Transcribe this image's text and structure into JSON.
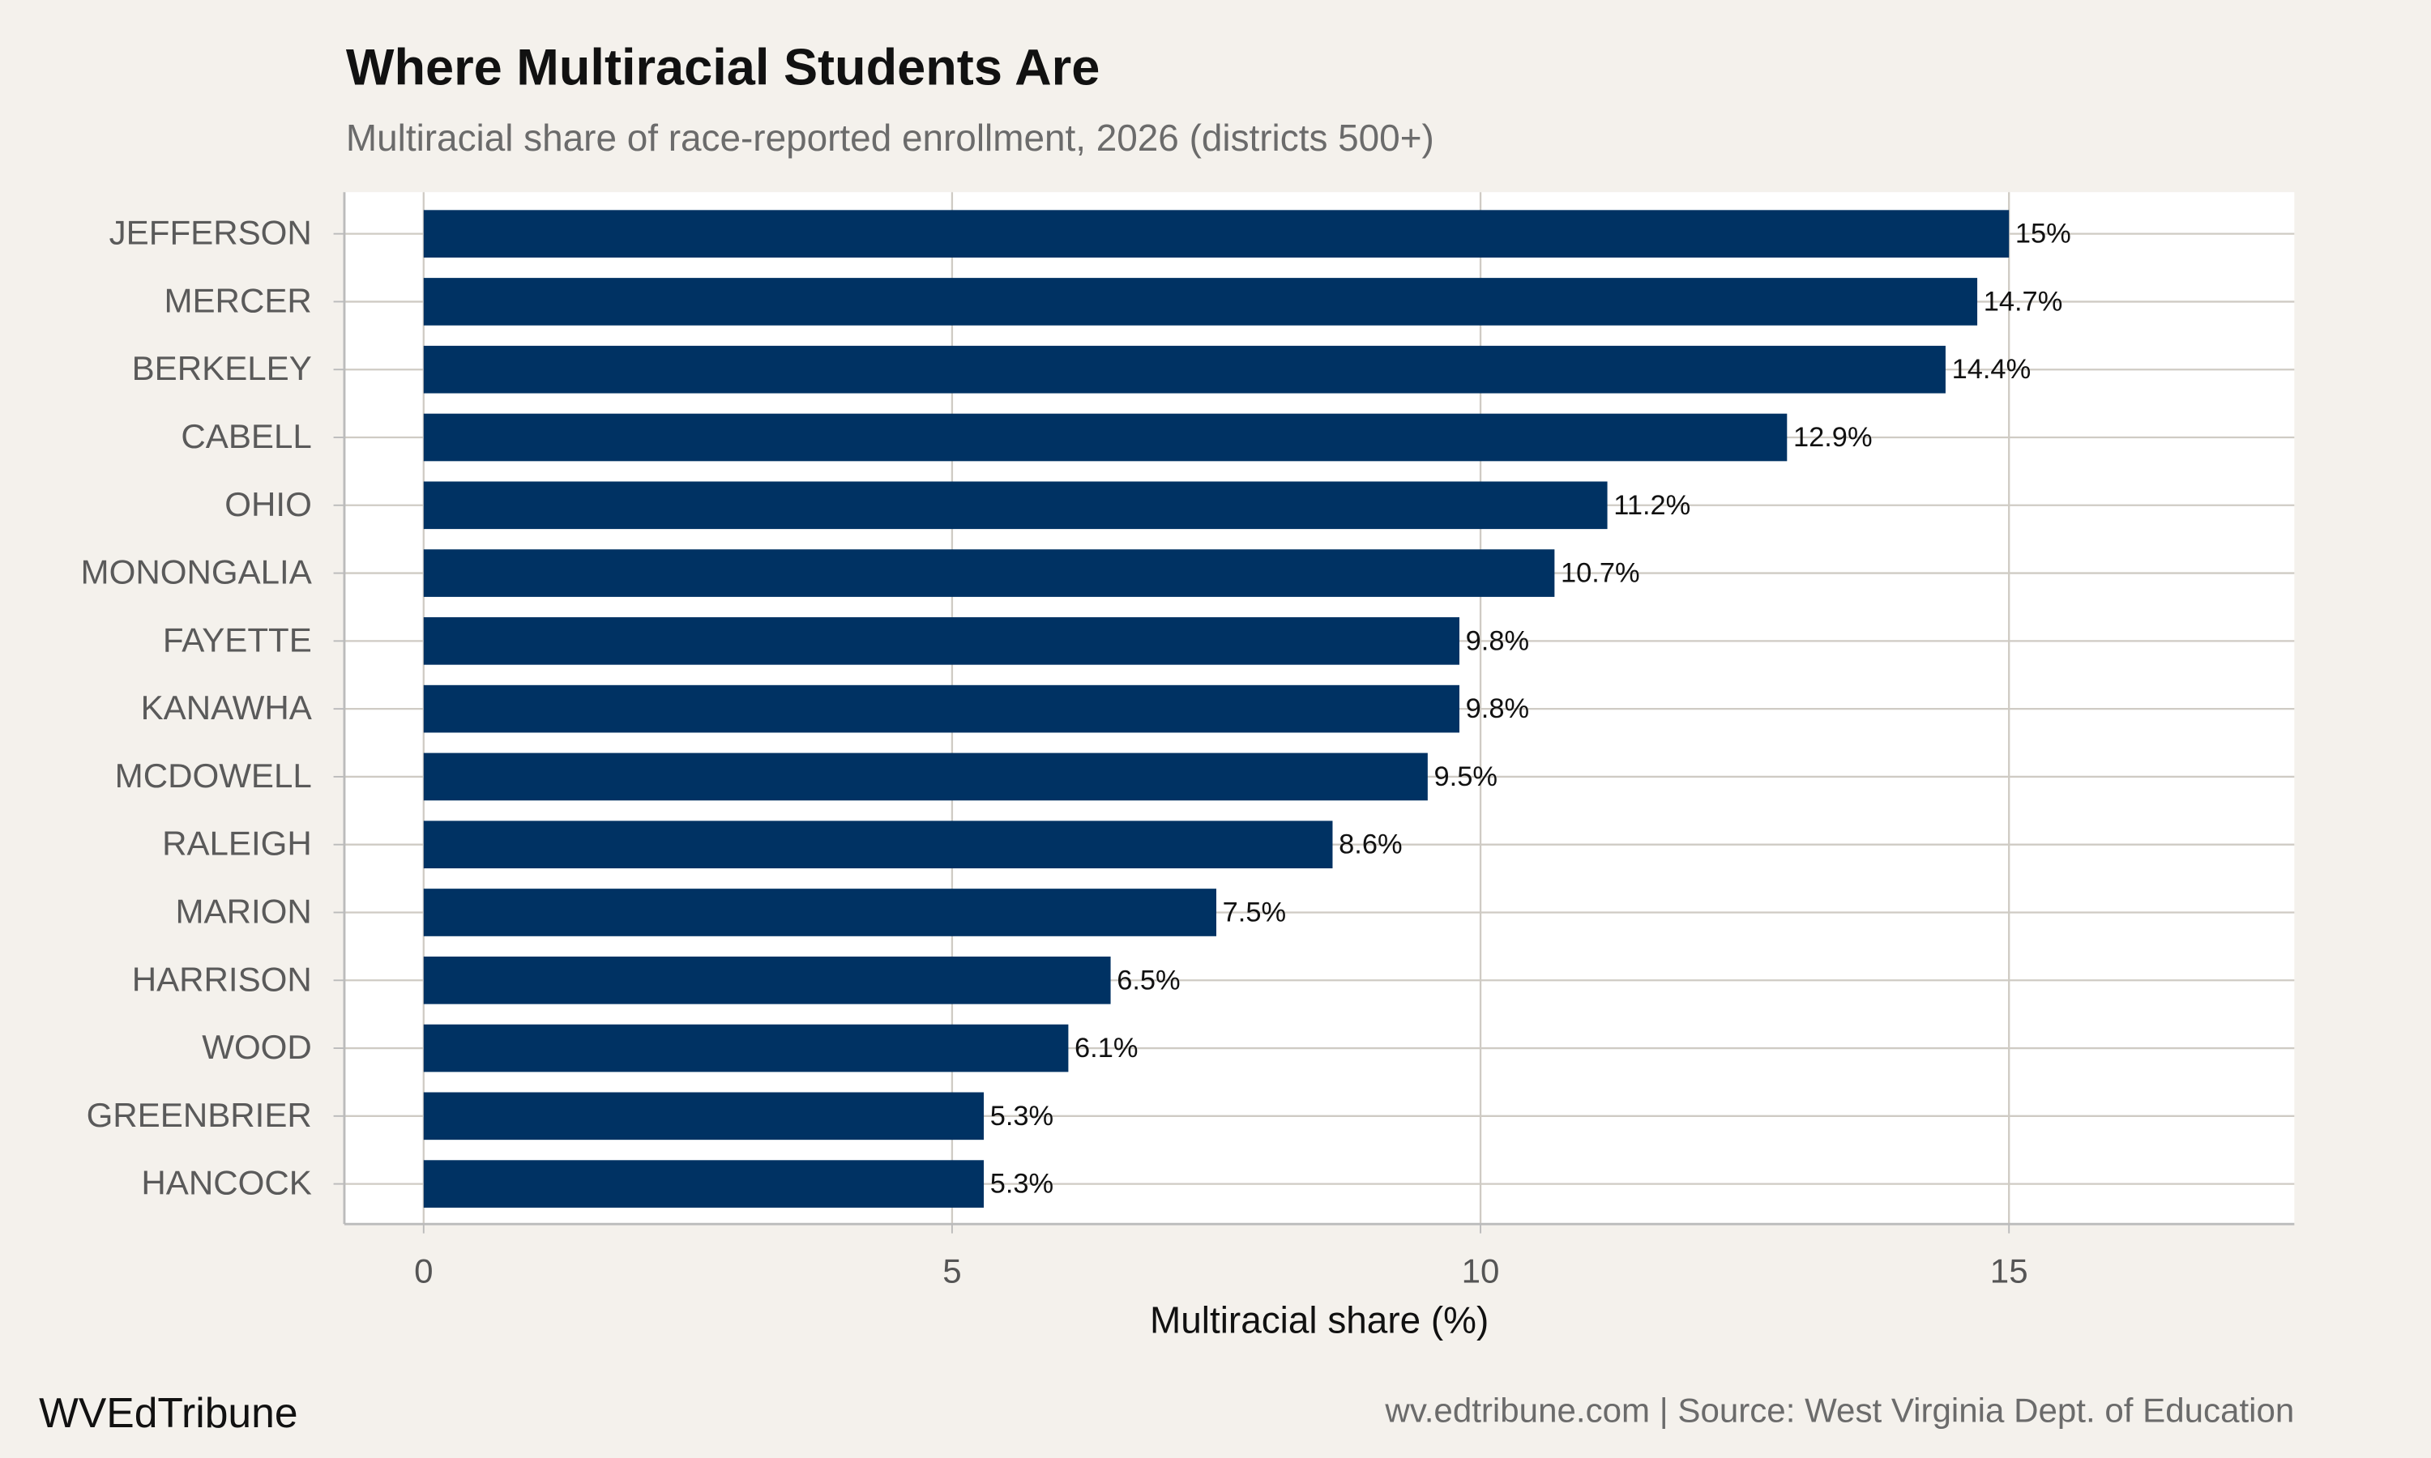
{
  "chart_data": {
    "type": "bar",
    "orientation": "horizontal",
    "title": "Where Multiracial Students Are",
    "subtitle": "Multiracial share of race-reported enrollment, 2026 (districts 500+)",
    "x_label": "Multiracial share (%)",
    "categories": [
      "JEFFERSON",
      "MERCER",
      "BERKELEY",
      "CABELL",
      "OHIO",
      "MONONGALIA",
      "FAYETTE",
      "KANAWHA",
      "MCDOWELL",
      "RALEIGH",
      "MARION",
      "HARRISON",
      "WOOD",
      "GREENBRIER",
      "HANCOCK"
    ],
    "values": [
      15,
      14.7,
      14.4,
      12.9,
      11.2,
      10.7,
      9.8,
      9.8,
      9.5,
      8.6,
      7.5,
      6.5,
      6.1,
      5.3,
      5.3
    ],
    "value_labels": [
      "15%",
      "14.7%",
      "14.4%",
      "12.9%",
      "11.2%",
      "10.7%",
      "9.8%",
      "9.8%",
      "9.5%",
      "8.6%",
      "7.5%",
      "6.5%",
      "6.1%",
      "5.3%",
      "5.3%"
    ],
    "color": "#003263",
    "xlim": [
      -0.75,
      17.7
    ],
    "xticks": [
      0,
      5,
      10,
      15
    ],
    "grid": true,
    "caption_left": "WVEdTribune",
    "caption_right": "wv.edtribune.com | Source: West Virginia Dept. of Education"
  }
}
